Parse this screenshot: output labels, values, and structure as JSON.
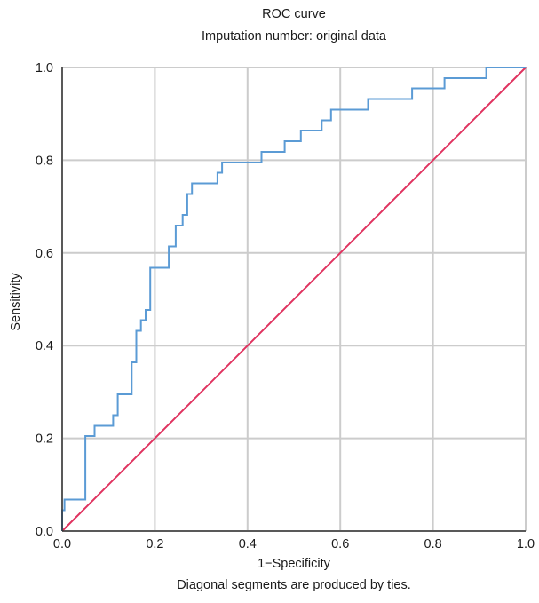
{
  "chart_data": {
    "type": "line",
    "title": "ROC curve",
    "subtitle": "Imputation number: original data",
    "xlabel": "1−Specificity",
    "ylabel": "Sensitivity",
    "footnote": "Diagonal segments are produced by ties.",
    "xlim": [
      0,
      1
    ],
    "ylim": [
      0,
      1
    ],
    "x_ticks": [
      "0.0",
      "0.2",
      "0.4",
      "0.6",
      "0.8",
      "1.0"
    ],
    "y_ticks": [
      "0.0",
      "0.2",
      "0.4",
      "0.6",
      "0.8",
      "1.0"
    ],
    "grid": true,
    "colors": {
      "roc": "#5b9bd5",
      "reference": "#e0325f",
      "grid": "#cccccc"
    },
    "series": [
      {
        "x": [
          0.0,
          0.0,
          0.005,
          0.005,
          0.012,
          0.012,
          0.05,
          0.05,
          0.07,
          0.07,
          0.11,
          0.11,
          0.12,
          0.12,
          0.15,
          0.15,
          0.16,
          0.16,
          0.17,
          0.17,
          0.18,
          0.18,
          0.19,
          0.19,
          0.23,
          0.23,
          0.245,
          0.245,
          0.26,
          0.26,
          0.27,
          0.27,
          0.28,
          0.28,
          0.335,
          0.335,
          0.345,
          0.345,
          0.43,
          0.43,
          0.48,
          0.48,
          0.515,
          0.515,
          0.56,
          0.56,
          0.58,
          0.58,
          0.66,
          0.66,
          0.755,
          0.755,
          0.825,
          0.825,
          0.915,
          0.915,
          1.0
        ],
        "y": [
          0.0,
          0.045,
          0.045,
          0.068,
          0.068,
          0.068,
          0.068,
          0.205,
          0.205,
          0.227,
          0.227,
          0.25,
          0.25,
          0.295,
          0.295,
          0.364,
          0.364,
          0.432,
          0.432,
          0.455,
          0.455,
          0.477,
          0.477,
          0.568,
          0.568,
          0.614,
          0.614,
          0.659,
          0.659,
          0.682,
          0.682,
          0.727,
          0.727,
          0.75,
          0.75,
          0.773,
          0.773,
          0.795,
          0.795,
          0.818,
          0.818,
          0.841,
          0.841,
          0.864,
          0.864,
          0.886,
          0.886,
          0.909,
          0.909,
          0.932,
          0.932,
          0.955,
          0.955,
          0.977,
          0.977,
          1.0,
          1.0
        ]
      },
      {
        "x": [
          0,
          1
        ],
        "y": [
          0,
          1
        ]
      }
    ]
  }
}
